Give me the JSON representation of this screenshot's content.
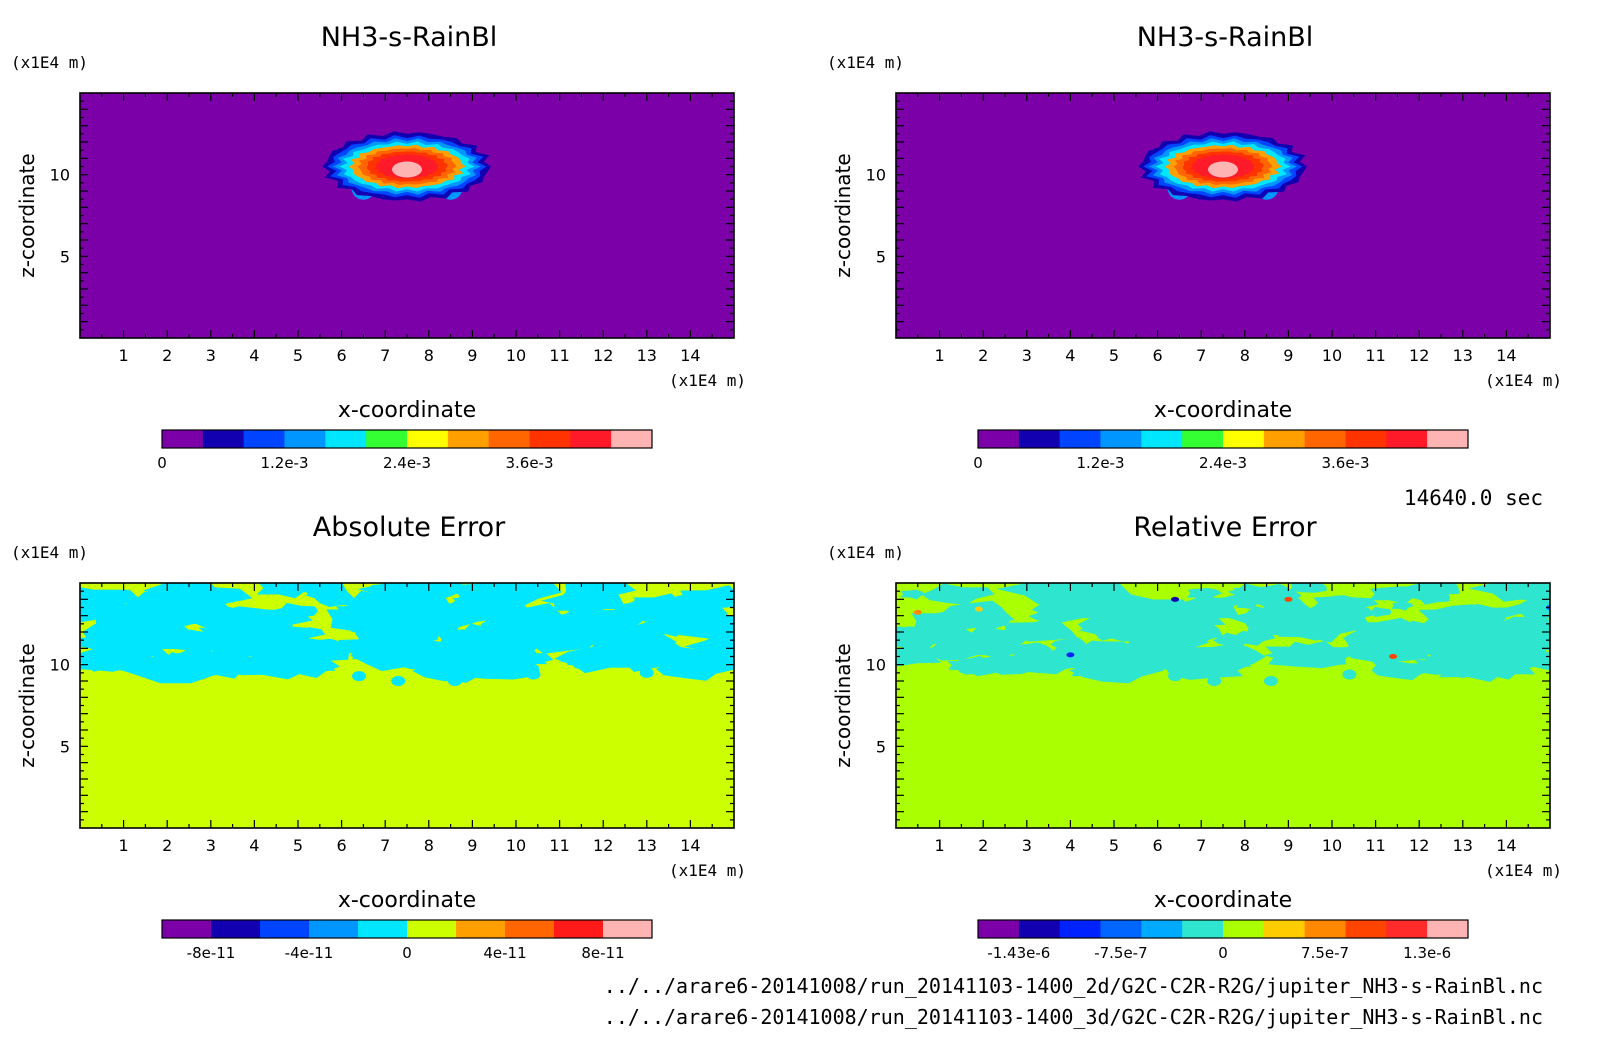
{
  "time_label": "14640.0 sec",
  "file_paths": [
    "../../arare6-20141008/run_20141103-1400_2d/G2C-C2R-R2G/jupiter_NH3-s-RainBl.nc",
    "../../arare6-20141008/run_20141103-1400_3d/G2C-C2R-R2G/jupiter_NH3-s-RainBl.nc"
  ],
  "chart_data": [
    {
      "type": "heatmap",
      "title": "NH3-s-RainBl",
      "xlabel": "x-coordinate",
      "ylabel": "z-coordinate",
      "x_unit": "(x1E4 m)",
      "y_unit": "(x1E4 m)",
      "xlim": [
        0,
        15
      ],
      "ylim": [
        0,
        15
      ],
      "x_ticks": [
        "1",
        "2",
        "3",
        "4",
        "5",
        "6",
        "7",
        "8",
        "9",
        "10",
        "11",
        "12",
        "13",
        "14"
      ],
      "y_ticks": [
        "5",
        "10"
      ],
      "field": "cloud",
      "colorbar": {
        "ticks": [
          "0",
          "1.2e-3",
          "2.4e-3",
          "3.6e-3"
        ],
        "colors": [
          "#7b00a8",
          "#1200b0",
          "#0044ff",
          "#0096ff",
          "#00e6ff",
          "#33ff33",
          "#ffff00",
          "#ffa000",
          "#ff6600",
          "#ff3300",
          "#ff1a2a",
          "#ffb4b4"
        ]
      }
    },
    {
      "type": "heatmap",
      "title": "NH3-s-RainBl",
      "xlabel": "x-coordinate",
      "ylabel": "z-coordinate",
      "x_unit": "(x1E4 m)",
      "y_unit": "(x1E4 m)",
      "xlim": [
        0,
        15
      ],
      "ylim": [
        0,
        15
      ],
      "x_ticks": [
        "1",
        "2",
        "3",
        "4",
        "5",
        "6",
        "7",
        "8",
        "9",
        "10",
        "11",
        "12",
        "13",
        "14"
      ],
      "y_ticks": [
        "5",
        "10"
      ],
      "field": "cloud",
      "colorbar": {
        "ticks": [
          "0",
          "1.2e-3",
          "2.4e-3",
          "3.6e-3"
        ],
        "colors": [
          "#7b00a8",
          "#1200b0",
          "#0044ff",
          "#0096ff",
          "#00e6ff",
          "#33ff33",
          "#ffff00",
          "#ffa000",
          "#ff6600",
          "#ff3300",
          "#ff1a2a",
          "#ffb4b4"
        ]
      }
    },
    {
      "type": "heatmap",
      "title": "Absolute Error",
      "xlabel": "x-coordinate",
      "ylabel": "z-coordinate",
      "x_unit": "(x1E4 m)",
      "y_unit": "(x1E4 m)",
      "xlim": [
        0,
        15
      ],
      "ylim": [
        0,
        15
      ],
      "x_ticks": [
        "1",
        "2",
        "3",
        "4",
        "5",
        "6",
        "7",
        "8",
        "9",
        "10",
        "11",
        "12",
        "13",
        "14"
      ],
      "y_ticks": [
        "5",
        "10"
      ],
      "field": "abs_error",
      "background_color": "#ccff00",
      "patch_color": "#00e6ff",
      "colorbar": {
        "ticks": [
          "-8e-11",
          "-4e-11",
          "0",
          "4e-11",
          "8e-11"
        ],
        "colors": [
          "#7b00a8",
          "#1200b0",
          "#0044ff",
          "#0096ff",
          "#00e6ff",
          "#ccff00",
          "#ffa000",
          "#ff6600",
          "#ff1a1a",
          "#ffb4b4"
        ]
      }
    },
    {
      "type": "heatmap",
      "title": "Relative Error",
      "xlabel": "x-coordinate",
      "ylabel": "z-coordinate",
      "x_unit": "(x1E4 m)",
      "y_unit": "(x1E4 m)",
      "xlim": [
        0,
        15
      ],
      "ylim": [
        0,
        15
      ],
      "x_ticks": [
        "1",
        "2",
        "3",
        "4",
        "5",
        "6",
        "7",
        "8",
        "9",
        "10",
        "11",
        "12",
        "13",
        "14"
      ],
      "y_ticks": [
        "5",
        "10"
      ],
      "field": "rel_error",
      "background_color": "#aaff00",
      "patch_color": "#2ee6d0",
      "colorbar": {
        "ticks": [
          "-1.43e-6",
          "-7.5e-7",
          "0",
          "7.5e-7",
          "1.3e-6"
        ],
        "colors": [
          "#7b00a8",
          "#1200b0",
          "#0022ff",
          "#0066ff",
          "#00aaff",
          "#2ee6d0",
          "#aaff00",
          "#ffcc00",
          "#ff8800",
          "#ff4400",
          "#ff2a2a",
          "#ffb4b4"
        ]
      }
    }
  ]
}
